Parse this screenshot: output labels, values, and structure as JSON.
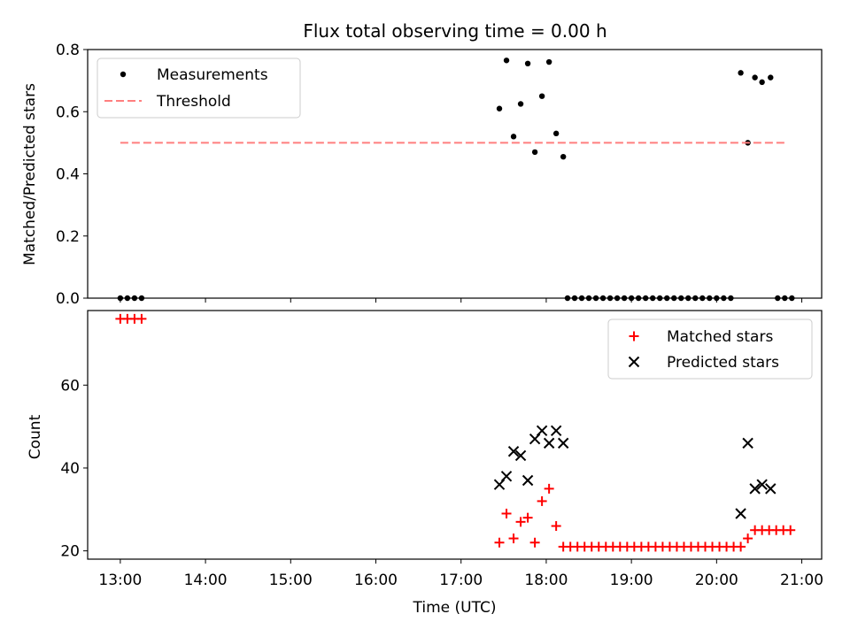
{
  "figure_title": "Flux total observing time = 0.00 h",
  "chart_data": [
    {
      "type": "scatter",
      "ylabel": "Matched/Predicted stars",
      "xlabel": "",
      "xlim": [
        "12:37",
        "21:14"
      ],
      "ylim": [
        0,
        0.8
      ],
      "yticks": [
        "0.0",
        "0.2",
        "0.4",
        "0.6",
        "0.8"
      ],
      "legend_position": "top-left",
      "series": [
        {
          "name": "Measurements",
          "marker": "dot",
          "color": "#000000",
          "points": [
            [
              "13:00",
              0.0
            ],
            [
              "13:05",
              0.0
            ],
            [
              "13:10",
              0.0
            ],
            [
              "13:15",
              0.0
            ],
            [
              "17:27",
              0.61
            ],
            [
              "17:32",
              0.765
            ],
            [
              "17:37",
              0.52
            ],
            [
              "17:42",
              0.625
            ],
            [
              "17:47",
              0.755
            ],
            [
              "17:52",
              0.47
            ],
            [
              "17:57",
              0.65
            ],
            [
              "18:02",
              0.76
            ],
            [
              "18:07",
              0.53
            ],
            [
              "18:12",
              0.455
            ],
            [
              "18:15",
              0.0
            ],
            [
              "18:20",
              0.0
            ],
            [
              "18:25",
              0.0
            ],
            [
              "18:30",
              0.0
            ],
            [
              "18:35",
              0.0
            ],
            [
              "18:40",
              0.0
            ],
            [
              "18:45",
              0.0
            ],
            [
              "18:50",
              0.0
            ],
            [
              "18:55",
              0.0
            ],
            [
              "19:00",
              0.0
            ],
            [
              "19:05",
              0.0
            ],
            [
              "19:10",
              0.0
            ],
            [
              "19:15",
              0.0
            ],
            [
              "19:20",
              0.0
            ],
            [
              "19:25",
              0.0
            ],
            [
              "19:30",
              0.0
            ],
            [
              "19:35",
              0.0
            ],
            [
              "19:40",
              0.0
            ],
            [
              "19:45",
              0.0
            ],
            [
              "19:50",
              0.0
            ],
            [
              "19:55",
              0.0
            ],
            [
              "20:00",
              0.0
            ],
            [
              "20:05",
              0.0
            ],
            [
              "20:10",
              0.0
            ],
            [
              "20:17",
              0.725
            ],
            [
              "20:22",
              0.5
            ],
            [
              "20:27",
              0.71
            ],
            [
              "20:32",
              0.695
            ],
            [
              "20:38",
              0.71
            ],
            [
              "20:43",
              0.0
            ],
            [
              "20:48",
              0.0
            ],
            [
              "20:53",
              0.0
            ]
          ]
        },
        {
          "name": "Threshold",
          "line": "dashed",
          "color": "#ff7f7f",
          "x_range": [
            "13:00",
            "20:48"
          ],
          "y": 0.5
        }
      ]
    },
    {
      "type": "scatter",
      "ylabel": "Count",
      "xlabel": "Time (UTC)",
      "xlim": [
        "12:37",
        "21:14"
      ],
      "ylim": [
        18,
        78
      ],
      "yticks": [
        "20",
        "40",
        "60"
      ],
      "xticks": [
        "13:00",
        "14:00",
        "15:00",
        "16:00",
        "17:00",
        "18:00",
        "19:00",
        "20:00",
        "21:00"
      ],
      "legend_position": "top-right",
      "series": [
        {
          "name": "Matched stars",
          "marker": "plus",
          "color": "#ff0000",
          "points": [
            [
              "13:00",
              76
            ],
            [
              "13:05",
              76
            ],
            [
              "13:10",
              76
            ],
            [
              "13:15",
              76
            ],
            [
              "17:27",
              22
            ],
            [
              "17:32",
              29
            ],
            [
              "17:37",
              23
            ],
            [
              "17:42",
              27
            ],
            [
              "17:47",
              28
            ],
            [
              "17:52",
              22
            ],
            [
              "17:57",
              32
            ],
            [
              "18:02",
              35
            ],
            [
              "18:07",
              26
            ],
            [
              "18:12",
              21
            ],
            [
              "18:17",
              21
            ],
            [
              "18:22",
              21
            ],
            [
              "18:27",
              21
            ],
            [
              "18:32",
              21
            ],
            [
              "18:37",
              21
            ],
            [
              "18:42",
              21
            ],
            [
              "18:47",
              21
            ],
            [
              "18:52",
              21
            ],
            [
              "18:57",
              21
            ],
            [
              "19:02",
              21
            ],
            [
              "19:07",
              21
            ],
            [
              "19:12",
              21
            ],
            [
              "19:17",
              21
            ],
            [
              "19:22",
              21
            ],
            [
              "19:27",
              21
            ],
            [
              "19:32",
              21
            ],
            [
              "19:37",
              21
            ],
            [
              "19:42",
              21
            ],
            [
              "19:47",
              21
            ],
            [
              "19:52",
              21
            ],
            [
              "19:57",
              21
            ],
            [
              "20:02",
              21
            ],
            [
              "20:07",
              21
            ],
            [
              "20:12",
              21
            ],
            [
              "20:17",
              21
            ],
            [
              "20:22",
              23
            ],
            [
              "20:27",
              25
            ],
            [
              "20:32",
              25
            ],
            [
              "20:37",
              25
            ],
            [
              "20:42",
              25
            ],
            [
              "20:47",
              25
            ],
            [
              "20:52",
              25
            ]
          ]
        },
        {
          "name": "Predicted stars",
          "marker": "x",
          "color": "#000000",
          "points": [
            [
              "17:27",
              36
            ],
            [
              "17:32",
              38
            ],
            [
              "17:37",
              44
            ],
            [
              "17:42",
              43
            ],
            [
              "17:47",
              37
            ],
            [
              "17:52",
              47
            ],
            [
              "17:57",
              49
            ],
            [
              "18:02",
              46
            ],
            [
              "18:07",
              49
            ],
            [
              "18:12",
              46
            ],
            [
              "20:17",
              29
            ],
            [
              "20:22",
              46
            ],
            [
              "20:27",
              35
            ],
            [
              "20:32",
              36
            ],
            [
              "20:38",
              35
            ]
          ]
        }
      ]
    }
  ]
}
